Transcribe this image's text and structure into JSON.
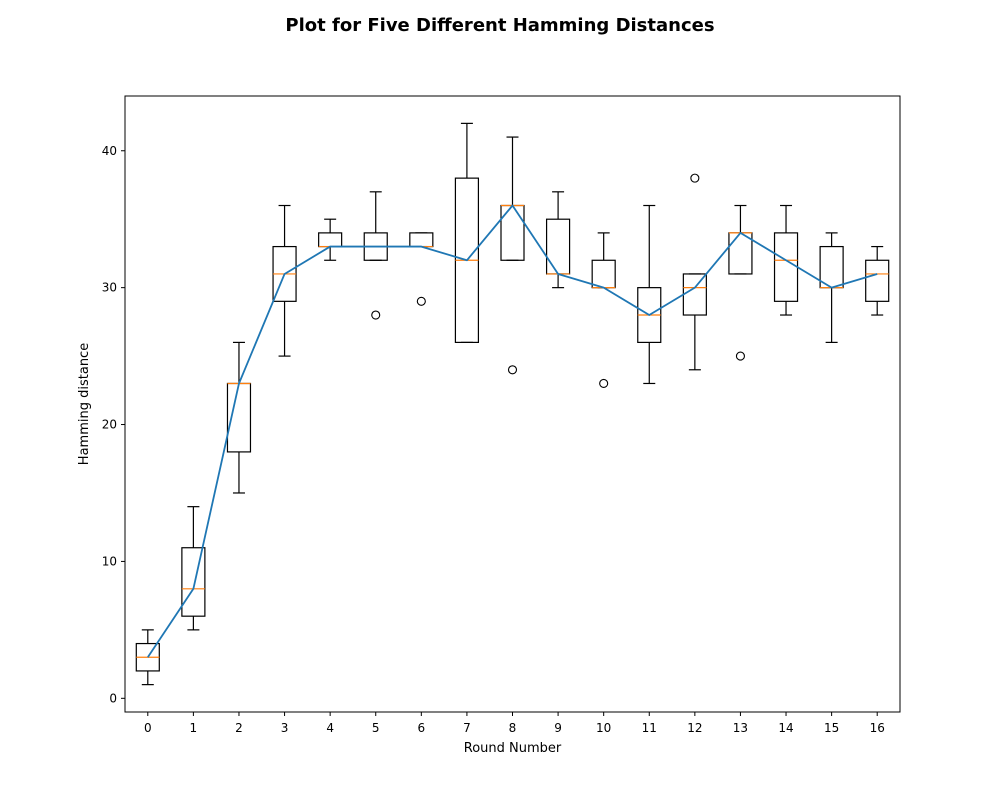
{
  "chart_data": {
    "type": "box",
    "title": "Plot for Five Different Hamming Distances",
    "xlabel": "Round Number",
    "ylabel": "Hamming distance",
    "xlim": [
      -0.5,
      16.5
    ],
    "ylim": [
      -1,
      44
    ],
    "xticks": [
      0,
      1,
      2,
      3,
      4,
      5,
      6,
      7,
      8,
      9,
      10,
      11,
      12,
      13,
      14,
      15,
      16
    ],
    "yticks": [
      0,
      10,
      20,
      30,
      40
    ],
    "grid": false,
    "colors": {
      "box": "#000000",
      "median": "#ff7f0e",
      "line": "#1f77b4"
    },
    "boxes": [
      {
        "x": 0,
        "whislo": 1,
        "q1": 2,
        "med": 3,
        "q3": 4,
        "whishi": 5,
        "fliers": []
      },
      {
        "x": 1,
        "whislo": 5,
        "q1": 6,
        "med": 8,
        "q3": 11,
        "whishi": 14,
        "fliers": []
      },
      {
        "x": 2,
        "whislo": 15,
        "q1": 18,
        "med": 23,
        "q3": 23,
        "whishi": 26,
        "fliers": []
      },
      {
        "x": 3,
        "whislo": 25,
        "q1": 29,
        "med": 31,
        "q3": 33,
        "whishi": 36,
        "fliers": []
      },
      {
        "x": 4,
        "whislo": 32,
        "q1": 33,
        "med": 33,
        "q3": 34,
        "whishi": 35,
        "fliers": []
      },
      {
        "x": 5,
        "whislo": 32,
        "q1": 32,
        "med": 33,
        "q3": 34,
        "whishi": 37,
        "fliers": [
          28
        ]
      },
      {
        "x": 6,
        "whislo": 33,
        "q1": 33,
        "med": 33,
        "q3": 34,
        "whishi": 34,
        "fliers": [
          29
        ]
      },
      {
        "x": 7,
        "whislo": 26,
        "q1": 26,
        "med": 32,
        "q3": 38,
        "whishi": 42,
        "fliers": []
      },
      {
        "x": 8,
        "whislo": 32,
        "q1": 32,
        "med": 36,
        "q3": 36,
        "whishi": 41,
        "fliers": [
          24
        ]
      },
      {
        "x": 9,
        "whislo": 30,
        "q1": 31,
        "med": 31,
        "q3": 35,
        "whishi": 37,
        "fliers": []
      },
      {
        "x": 10,
        "whislo": 30,
        "q1": 30,
        "med": 30,
        "q3": 32,
        "whishi": 34,
        "fliers": [
          23
        ]
      },
      {
        "x": 11,
        "whislo": 23,
        "q1": 26,
        "med": 28,
        "q3": 30,
        "whishi": 36,
        "fliers": []
      },
      {
        "x": 12,
        "whislo": 24,
        "q1": 28,
        "med": 30,
        "q3": 31,
        "whishi": 31,
        "fliers": [
          38
        ]
      },
      {
        "x": 13,
        "whislo": 31,
        "q1": 31,
        "med": 34,
        "q3": 34,
        "whishi": 36,
        "fliers": [
          25
        ]
      },
      {
        "x": 14,
        "whislo": 28,
        "q1": 29,
        "med": 32,
        "q3": 34,
        "whishi": 36,
        "fliers": []
      },
      {
        "x": 15,
        "whislo": 26,
        "q1": 30,
        "med": 30,
        "q3": 33,
        "whishi": 34,
        "fliers": []
      },
      {
        "x": 16,
        "whislo": 28,
        "q1": 29,
        "med": 31,
        "q3": 32,
        "whishi": 33,
        "fliers": []
      }
    ],
    "series": [
      {
        "type": "line",
        "x": [
          0,
          1,
          2,
          3,
          4,
          5,
          6,
          7,
          8,
          9,
          10,
          11,
          12,
          13,
          14,
          15,
          16
        ],
        "values": [
          3,
          8,
          23,
          31,
          33,
          33,
          33,
          32,
          36,
          31,
          30,
          28,
          30,
          34,
          32,
          30,
          31
        ]
      }
    ]
  }
}
